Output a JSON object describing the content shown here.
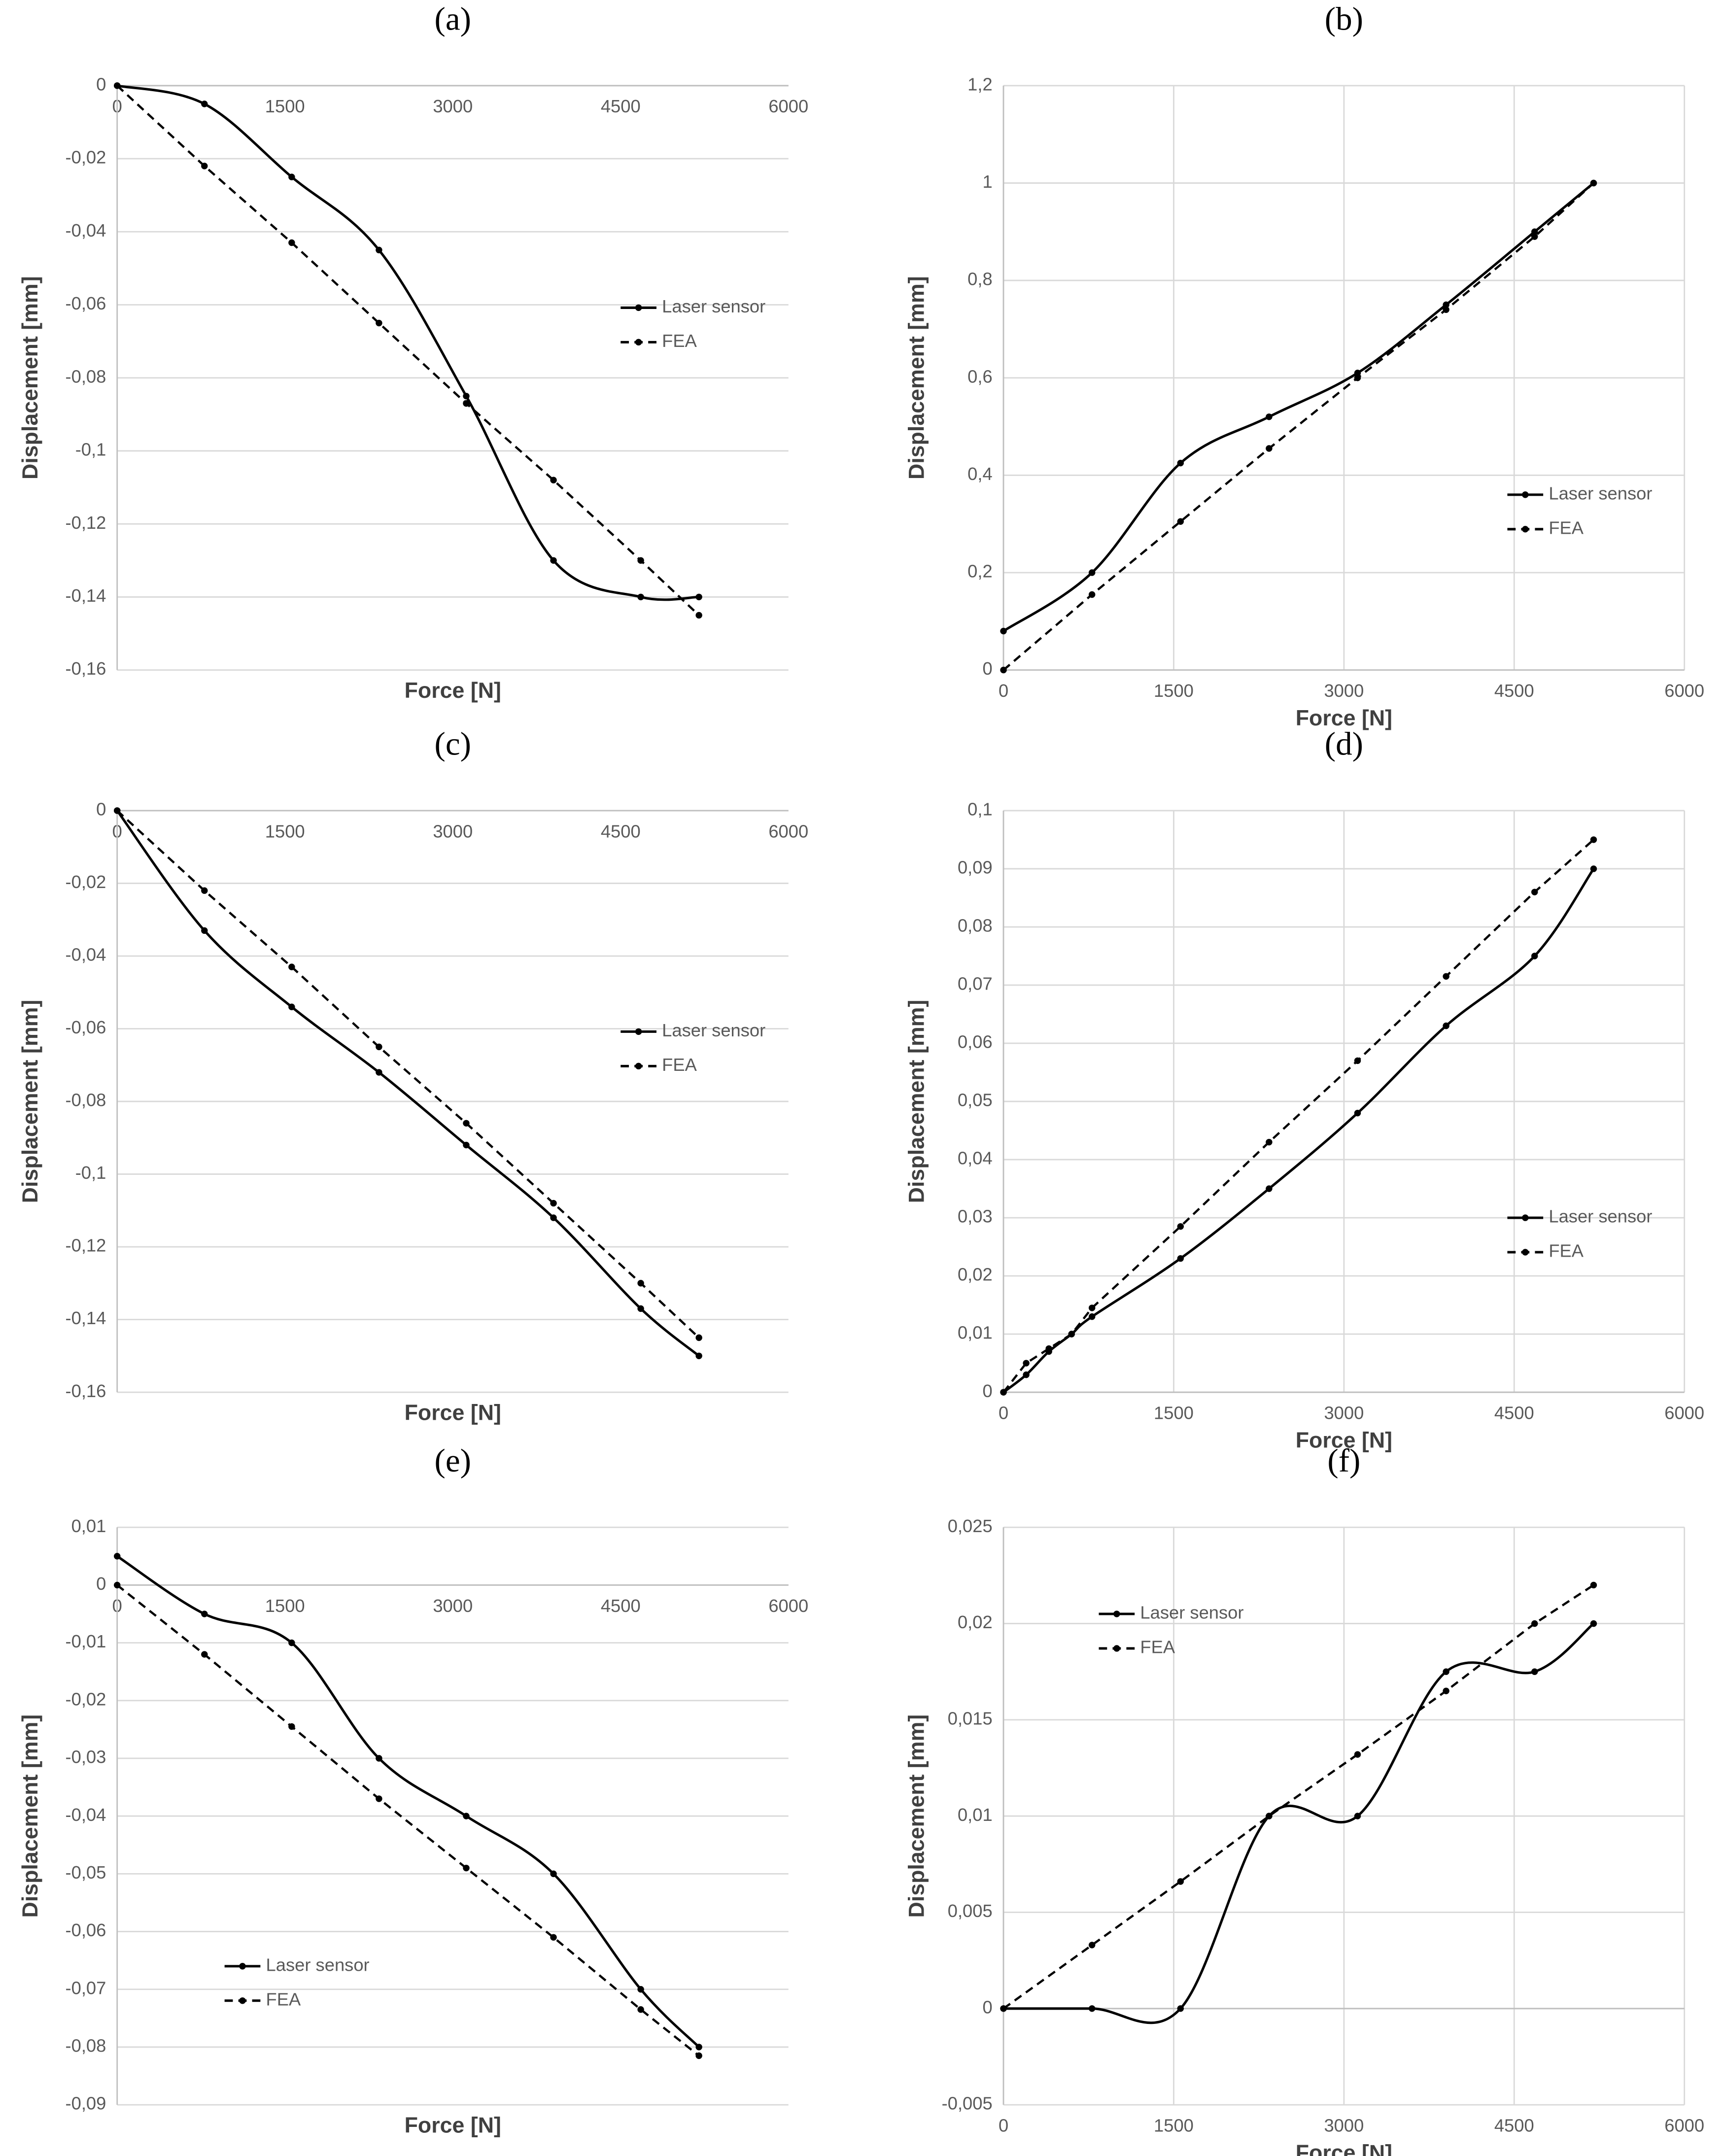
{
  "chart_data": [
    {
      "type": "line",
      "title": "(a)",
      "x_label": "Force [N]",
      "y_label": "Displacement [mm]",
      "x": [
        0,
        780,
        1560,
        2340,
        3120,
        3900,
        4680,
        5200
      ],
      "series": [
        {
          "name": "Laser sensor",
          "color": "#000000",
          "style": "solid",
          "smooth": true,
          "values": [
            0,
            -0.005,
            -0.025,
            -0.045,
            -0.085,
            -0.13,
            -0.14,
            -0.14
          ]
        },
        {
          "name": "FEA",
          "color": "#000000",
          "style": "dashed",
          "smooth": false,
          "values": [
            0,
            -0.022,
            -0.043,
            -0.065,
            -0.087,
            -0.108,
            -0.13,
            -0.145
          ]
        }
      ],
      "xlim": [
        0,
        6000
      ],
      "xticks": [
        0,
        1500,
        3000,
        4500,
        6000
      ],
      "ylim": [
        -0.16,
        0
      ],
      "yticks": [
        0,
        {
          "value": -0.02,
          "label": "-0,02"
        },
        {
          "value": -0.04,
          "label": "-0,04"
        },
        {
          "value": -0.06,
          "label": "-0,06"
        },
        {
          "value": -0.08,
          "label": "-0,08"
        },
        {
          "value": -0.1,
          "label": "-0,1"
        },
        {
          "value": -0.12,
          "label": "-0,12"
        },
        {
          "value": -0.14,
          "label": "-0,14"
        },
        {
          "value": -0.16,
          "label": "-0,16"
        }
      ],
      "grid": "y",
      "legend": "right",
      "x_label_position": "zero"
    },
    {
      "type": "line",
      "title": "(b)",
      "x_label": "Force [N]",
      "y_label": "Displacement [mm]",
      "x": [
        0,
        780,
        1560,
        2340,
        3120,
        3900,
        4680,
        5200
      ],
      "series": [
        {
          "name": "Laser sensor",
          "color": "#000000",
          "style": "solid",
          "smooth": true,
          "values": [
            0.08,
            0.2,
            0.425,
            0.52,
            0.61,
            0.75,
            0.9,
            1.0
          ]
        },
        {
          "name": "FEA",
          "color": "#000000",
          "style": "dashed",
          "smooth": false,
          "values": [
            0,
            0.155,
            0.305,
            0.455,
            0.6,
            0.74,
            0.89,
            1.0
          ]
        }
      ],
      "xlim": [
        0,
        6000
      ],
      "xticks": [
        0,
        1500,
        3000,
        4500,
        6000
      ],
      "ylim": [
        0,
        1.2
      ],
      "yticks": [
        0,
        {
          "value": 0.2,
          "label": "0,2"
        },
        {
          "value": 0.4,
          "label": "0,4"
        },
        {
          "value": 0.6,
          "label": "0,6"
        },
        {
          "value": 0.8,
          "label": "0,8"
        },
        1,
        {
          "value": 1.2,
          "label": "1,2"
        }
      ],
      "grid": "both",
      "legend": "lower-right",
      "x_label_position": "zero"
    },
    {
      "type": "line",
      "title": "(c)",
      "x_label": "Force [N]",
      "y_label": "Displacement [mm]",
      "x": [
        0,
        780,
        1560,
        2340,
        3120,
        3900,
        4680,
        5200
      ],
      "series": [
        {
          "name": "Laser sensor",
          "color": "#000000",
          "style": "solid",
          "smooth": true,
          "values": [
            0,
            -0.033,
            -0.054,
            -0.072,
            -0.092,
            -0.112,
            -0.137,
            -0.15
          ]
        },
        {
          "name": "FEA",
          "color": "#000000",
          "style": "dashed",
          "smooth": false,
          "values": [
            0,
            -0.022,
            -0.043,
            -0.065,
            -0.086,
            -0.108,
            -0.13,
            -0.145
          ]
        }
      ],
      "xlim": [
        0,
        6000
      ],
      "xticks": [
        0,
        1500,
        3000,
        4500,
        6000
      ],
      "ylim": [
        -0.16,
        0
      ],
      "yticks": [
        0,
        {
          "value": -0.02,
          "label": "-0,02"
        },
        {
          "value": -0.04,
          "label": "-0,04"
        },
        {
          "value": -0.06,
          "label": "-0,06"
        },
        {
          "value": -0.08,
          "label": "-0,08"
        },
        {
          "value": -0.1,
          "label": "-0,1"
        },
        {
          "value": -0.12,
          "label": "-0,12"
        },
        {
          "value": -0.14,
          "label": "-0,14"
        },
        {
          "value": -0.16,
          "label": "-0,16"
        }
      ],
      "grid": "y",
      "legend": "right",
      "x_label_position": "zero"
    },
    {
      "type": "line",
      "title": "(d)",
      "x_label": "Force [N]",
      "y_label": "Displacement [mm]",
      "x": [
        0,
        200,
        400,
        600,
        780,
        1560,
        2340,
        3120,
        3900,
        4680,
        5200
      ],
      "series": [
        {
          "name": "Laser sensor",
          "color": "#000000",
          "style": "solid",
          "smooth": true,
          "values": [
            0,
            0.003,
            0.007,
            0.01,
            0.013,
            0.023,
            0.035,
            0.048,
            0.063,
            0.075,
            0.09
          ]
        },
        {
          "name": "FEA",
          "color": "#000000",
          "style": "dashed",
          "smooth": false,
          "values": [
            0,
            0.005,
            0.0075,
            0.01,
            0.0145,
            0.0285,
            0.043,
            0.057,
            0.0715,
            0.086,
            0.095
          ]
        }
      ],
      "xlim": [
        0,
        6000
      ],
      "xticks": [
        0,
        1500,
        3000,
        4500,
        6000
      ],
      "ylim": [
        0,
        0.1
      ],
      "yticks": [
        0,
        {
          "value": 0.01,
          "label": "0,01"
        },
        {
          "value": 0.02,
          "label": "0,02"
        },
        {
          "value": 0.03,
          "label": "0,03"
        },
        {
          "value": 0.04,
          "label": "0,04"
        },
        {
          "value": 0.05,
          "label": "0,05"
        },
        {
          "value": 0.06,
          "label": "0,06"
        },
        {
          "value": 0.07,
          "label": "0,07"
        },
        {
          "value": 0.08,
          "label": "0,08"
        },
        {
          "value": 0.09,
          "label": "0,09"
        },
        {
          "value": 0.1,
          "label": "0,1"
        }
      ],
      "grid": "both",
      "legend": "lower-right",
      "x_label_position": "zero"
    },
    {
      "type": "line",
      "title": "(e)",
      "x_label": "Force [N]",
      "y_label": "Displacement [mm]",
      "x": [
        0,
        780,
        1560,
        2340,
        3120,
        3900,
        4680,
        5200
      ],
      "series": [
        {
          "name": "Laser sensor",
          "color": "#000000",
          "style": "solid",
          "smooth": true,
          "values": [
            0.005,
            -0.005,
            -0.01,
            -0.03,
            -0.04,
            -0.05,
            -0.07,
            -0.08
          ]
        },
        {
          "name": "FEA",
          "color": "#000000",
          "style": "dashed",
          "smooth": false,
          "values": [
            0,
            -0.012,
            -0.0245,
            -0.037,
            -0.049,
            -0.061,
            -0.0735,
            -0.0815
          ]
        }
      ],
      "xlim": [
        0,
        6000
      ],
      "xticks": [
        0,
        1500,
        3000,
        4500,
        6000
      ],
      "ylim": [
        -0.09,
        0.01
      ],
      "yticks": [
        {
          "value": 0.01,
          "label": "0,01"
        },
        0,
        {
          "value": -0.01,
          "label": "-0,01"
        },
        {
          "value": -0.02,
          "label": "-0,02"
        },
        {
          "value": -0.03,
          "label": "-0,03"
        },
        {
          "value": -0.04,
          "label": "-0,04"
        },
        {
          "value": -0.05,
          "label": "-0,05"
        },
        {
          "value": -0.06,
          "label": "-0,06"
        },
        {
          "value": -0.07,
          "label": "-0,07"
        },
        {
          "value": -0.08,
          "label": "-0,08"
        },
        {
          "value": -0.09,
          "label": "-0,09"
        }
      ],
      "grid": "y",
      "legend": "lower-left",
      "x_label_position": "zero"
    },
    {
      "type": "line",
      "title": "(f)",
      "x_label": "Force [N]",
      "y_label": "Displacement [mm]",
      "x": [
        0,
        780,
        1560,
        2340,
        3120,
        3900,
        4680,
        5200
      ],
      "series": [
        {
          "name": "Laser sensor",
          "color": "#000000",
          "style": "solid",
          "smooth": true,
          "values": [
            0,
            0,
            0,
            0.01,
            0.01,
            0.0175,
            0.0175,
            0.02
          ]
        },
        {
          "name": "FEA",
          "color": "#000000",
          "style": "dashed",
          "smooth": false,
          "values": [
            0,
            0.0033,
            0.0066,
            0.01,
            0.0132,
            0.0165,
            0.02,
            0.022
          ]
        }
      ],
      "xlim": [
        0,
        6000
      ],
      "xticks": [
        0,
        1500,
        3000,
        4500,
        6000
      ],
      "ylim": [
        -0.005,
        0.025
      ],
      "yticks": [
        {
          "value": -0.005,
          "label": "-0,005"
        },
        0,
        {
          "value": 0.005,
          "label": "0,005"
        },
        {
          "value": 0.01,
          "label": "0,01"
        },
        {
          "value": 0.015,
          "label": "0,015"
        },
        {
          "value": 0.02,
          "label": "0,02"
        },
        {
          "value": 0.025,
          "label": "0,025"
        }
      ],
      "grid": "both",
      "legend": "upper-left",
      "x_label_position": "bottom"
    }
  ]
}
